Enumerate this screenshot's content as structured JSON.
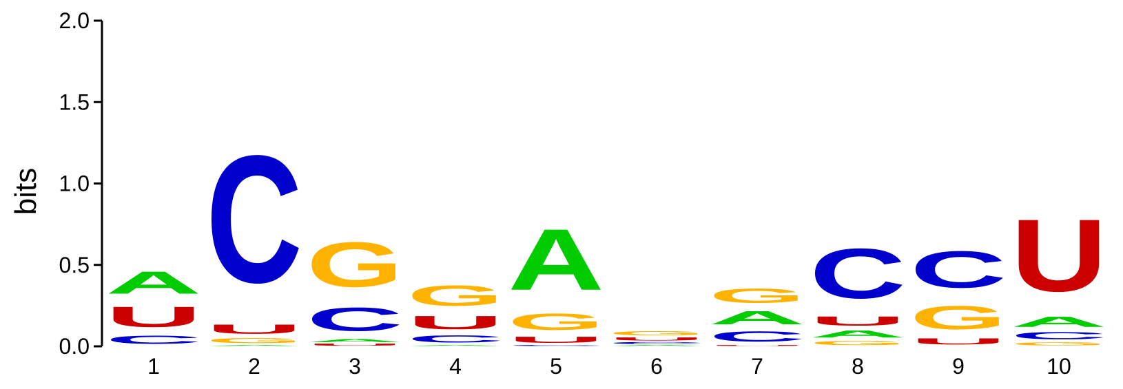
{
  "chart_data": {
    "type": "sequence-logo",
    "ylabel": "bits",
    "ylim": [
      0,
      2
    ],
    "yticks": [
      "0.0",
      "0.5",
      "1.0",
      "1.5",
      "2.0"
    ],
    "yticks_values": [
      0,
      0.5,
      1.0,
      1.5,
      2.0
    ],
    "positions": [
      "1",
      "2",
      "3",
      "4",
      "5",
      "6",
      "7",
      "8",
      "9",
      "10"
    ],
    "colors": {
      "A": "#00cc00",
      "C": "#0000cc",
      "G": "#ffb300",
      "U": "#cc0000"
    },
    "columns": [
      {
        "position": "1",
        "stack": [
          {
            "base": "C",
            "bits": 0.08
          },
          {
            "base": "U",
            "bits": 0.2
          },
          {
            "base": "A",
            "bits": 0.22
          }
        ]
      },
      {
        "position": "2",
        "stack": [
          {
            "base": "A",
            "bits": 0.01
          },
          {
            "base": "G",
            "bits": 0.05
          },
          {
            "base": "U",
            "bits": 0.09
          },
          {
            "base": "C",
            "bits": 1.25
          }
        ]
      },
      {
        "position": "3",
        "stack": [
          {
            "base": "U",
            "bits": 0.02
          },
          {
            "base": "A",
            "bits": 0.03
          },
          {
            "base": "C",
            "bits": 0.23
          },
          {
            "base": "G",
            "bits": 0.44
          }
        ]
      },
      {
        "position": "4",
        "stack": [
          {
            "base": "A",
            "bits": 0.01
          },
          {
            "base": "C",
            "bits": 0.07
          },
          {
            "base": "U",
            "bits": 0.13
          },
          {
            "base": "G",
            "bits": 0.2
          }
        ]
      },
      {
        "position": "5",
        "stack": [
          {
            "base": "C",
            "bits": 0.01
          },
          {
            "base": "U",
            "bits": 0.06
          },
          {
            "base": "G",
            "bits": 0.16
          },
          {
            "base": "A",
            "bits": 0.6
          }
        ]
      },
      {
        "position": "6",
        "stack": [
          {
            "base": "A",
            "bits": 0.01
          },
          {
            "base": "C",
            "bits": 0.02
          },
          {
            "base": "U",
            "bits": 0.03
          },
          {
            "base": "G",
            "bits": 0.04
          }
        ]
      },
      {
        "position": "7",
        "stack": [
          {
            "base": "U",
            "bits": 0.01
          },
          {
            "base": "C",
            "bits": 0.1
          },
          {
            "base": "A",
            "bits": 0.13
          },
          {
            "base": "G",
            "bits": 0.14
          }
        ]
      },
      {
        "position": "8",
        "stack": [
          {
            "base": "G",
            "bits": 0.04
          },
          {
            "base": "A",
            "bits": 0.07
          },
          {
            "base": "U",
            "bits": 0.09
          },
          {
            "base": "C",
            "bits": 0.49
          }
        ]
      },
      {
        "position": "9",
        "stack": [
          {
            "base": "U",
            "bits": 0.06
          },
          {
            "base": "G",
            "bits": 0.23
          },
          {
            "base": "C",
            "bits": 0.36
          }
        ]
      },
      {
        "position": "10",
        "stack": [
          {
            "base": "G",
            "bits": 0.03
          },
          {
            "base": "C",
            "bits": 0.07
          },
          {
            "base": "A",
            "bits": 0.1
          },
          {
            "base": "U",
            "bits": 0.71
          }
        ]
      }
    ]
  }
}
